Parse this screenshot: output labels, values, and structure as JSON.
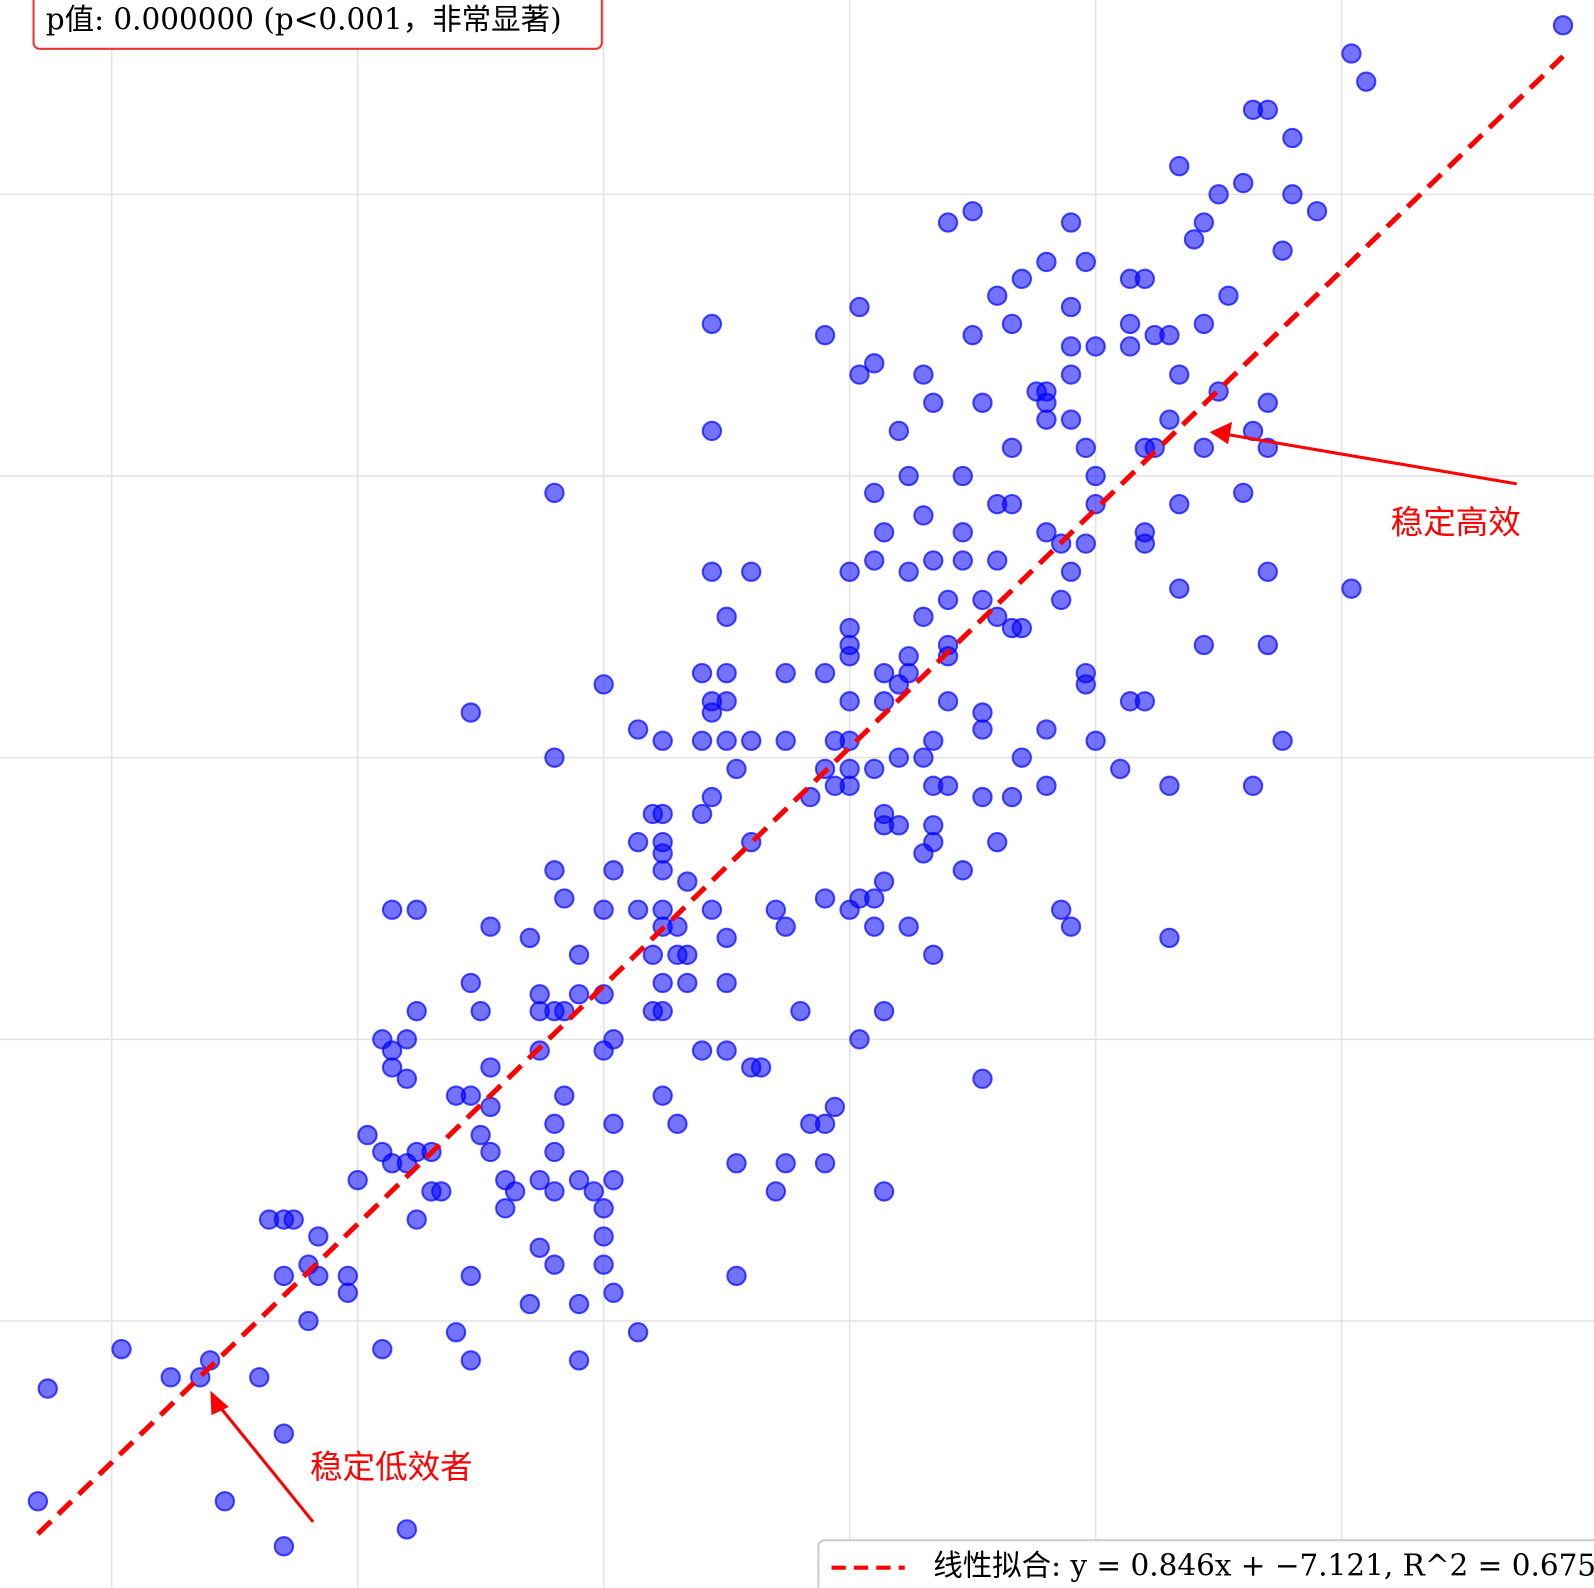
{
  "chart_data": {
    "type": "scatter",
    "annotation_box": "p值: 0.000000 (p<0.001，非常显著)",
    "annotations": [
      {
        "text": "稳定高效"
      },
      {
        "text": "稳定低效者"
      }
    ],
    "xlim": [
      32.73,
      65.13
    ],
    "ylim": [
      20.26,
      48.45
    ],
    "xticks": [
      35,
      40,
      45,
      50,
      55,
      60
    ],
    "yticks": [
      25,
      30,
      35,
      40,
      45
    ],
    "grid": true,
    "legend": "lower right",
    "fit": {
      "name": "线性拟合: y = 0.846x + −7.121, R^2 = 0.675",
      "color": "#ff0000",
      "x": [
        33.5,
        64.5
      ],
      "y": [
        21.22,
        47.45
      ]
    },
    "series": [
      {
        "color": "#0000ff",
        "x": [
          64.5,
          60.2,
          60.5,
          58.2,
          58.5,
          59.0,
          56.7,
          58.0,
          57.5,
          59.0,
          59.5,
          57.2,
          57.0,
          58.8,
          54.5,
          52.0,
          52.5,
          54.8,
          54.0,
          53.5,
          53.0,
          55.7,
          56.0,
          57.7,
          50.2,
          54.5,
          53.3,
          52.5,
          49.5,
          47.2,
          55.7,
          57.2,
          56.2,
          56.5,
          54.5,
          55.0,
          55.7,
          50.5,
          50.2,
          51.5,
          54.5,
          53.8,
          54.0,
          56.7,
          57.5,
          51.7,
          52.7,
          54.0,
          54.5,
          54.0,
          56.5,
          58.5,
          51.0,
          47.2,
          56.0,
          56.2,
          57.2,
          58.2,
          58.5,
          53.3,
          54.8,
          51.2,
          52.3,
          55.0,
          44.0,
          50.5,
          53.0,
          53.3,
          55.0,
          56.7,
          58.0,
          51.5,
          50.7,
          52.3,
          54.0,
          56.0,
          56.0,
          54.3,
          54.8,
          50.5,
          51.7,
          52.3,
          53.0,
          47.2,
          48.0,
          50.0,
          51.2,
          54.5,
          58.5,
          52.0,
          52.7,
          56.7,
          60.2,
          47.5,
          51.5,
          53.0,
          53.3,
          53.5,
          54.3,
          50.0,
          50.0,
          50.0,
          52.0,
          57.2,
          58.5,
          51.2,
          47.0,
          47.5,
          48.7,
          49.5,
          50.7,
          51.2,
          52.0,
          54.8,
          54.8,
          45.0,
          51.0,
          47.2,
          47.5,
          50.0,
          50.7,
          52.0,
          55.7,
          56.0,
          42.3,
          47.2,
          52.7,
          45.7,
          52.7,
          54.0,
          46.2,
          47.0,
          47.5,
          48.0,
          48.7,
          49.7,
          50.0,
          51.7,
          55.0,
          58.8,
          44.0,
          51.0,
          51.5,
          53.5,
          47.7,
          49.5,
          50.0,
          50.5,
          55.5,
          49.7,
          50.0,
          51.7,
          52.0,
          54.0,
          56.5,
          58.2,
          49.2,
          52.7,
          53.3,
          47.2,
          46.0,
          46.2,
          47.0,
          50.7,
          50.7,
          51.0,
          51.7,
          45.7,
          46.2,
          48.0,
          51.7,
          53.0,
          46.2,
          51.5,
          44.0,
          45.2,
          46.2,
          52.3,
          46.7,
          50.7,
          44.2,
          49.5,
          50.2,
          50.5,
          40.7,
          41.2,
          45.0,
          45.7,
          46.2,
          47.2,
          48.5,
          50.0,
          54.3,
          42.7,
          46.2,
          46.5,
          48.7,
          50.5,
          51.2,
          54.5,
          43.5,
          47.5,
          56.5,
          44.5,
          46.0,
          46.5,
          46.7,
          51.7,
          42.3,
          46.2,
          46.7,
          47.5,
          43.7,
          44.5,
          45.0,
          41.2,
          42.5,
          43.7,
          44.0,
          44.2,
          46.0,
          46.2,
          49.0,
          50.7,
          40.5,
          41.0,
          45.2,
          50.2,
          40.7,
          43.7,
          45.0,
          47.0,
          47.5,
          40.7,
          42.7,
          48.0,
          48.2,
          41.0,
          52.7,
          42.0,
          42.3,
          44.2,
          46.2,
          42.7,
          49.7,
          44.0,
          45.2,
          46.5,
          49.2,
          49.5,
          40.2,
          42.5,
          40.5,
          41.2,
          41.5,
          42.7,
          44.0,
          40.7,
          41.0,
          47.7,
          48.7,
          49.5,
          40.0,
          43.0,
          43.7,
          44.5,
          45.2,
          41.5,
          41.7,
          43.2,
          44.0,
          44.8,
          48.5,
          50.7,
          43.0,
          45.0,
          38.2,
          38.5,
          38.7,
          41.2,
          39.2,
          45.0,
          43.7,
          39.0,
          44.0,
          45.0,
          38.5,
          39.2,
          39.8,
          42.3,
          47.7,
          39.8,
          45.2,
          43.5,
          44.5,
          39.0,
          42.0,
          45.7,
          35.2,
          40.5,
          37.0,
          42.3,
          44.5,
          36.2,
          36.8,
          38.0,
          33.7,
          38.5,
          33.5,
          37.3,
          41.0,
          38.5
        ],
        "values": [
          48.0,
          47.5,
          47.0,
          46.5,
          46.5,
          46.0,
          45.5,
          45.2,
          45.0,
          45.0,
          44.7,
          44.5,
          44.2,
          44.0,
          44.5,
          44.5,
          44.7,
          43.8,
          43.8,
          43.5,
          43.2,
          43.5,
          43.5,
          43.2,
          43.0,
          43.0,
          42.7,
          42.5,
          42.5,
          42.7,
          42.7,
          42.7,
          42.5,
          42.5,
          42.3,
          42.3,
          42.3,
          42.0,
          41.8,
          41.8,
          41.8,
          41.5,
          41.5,
          41.8,
          41.5,
          41.3,
          41.3,
          41.3,
          41.0,
          41.0,
          41.0,
          41.3,
          40.8,
          40.8,
          40.5,
          40.5,
          40.5,
          40.8,
          40.5,
          40.5,
          40.5,
          40.0,
          40.0,
          40.0,
          39.7,
          39.7,
          39.5,
          39.5,
          39.5,
          39.5,
          39.7,
          39.3,
          39.0,
          39.0,
          39.0,
          39.0,
          38.8,
          38.8,
          38.8,
          38.5,
          38.5,
          38.5,
          38.5,
          38.3,
          38.3,
          38.3,
          38.3,
          38.3,
          38.3,
          37.8,
          37.8,
          38.0,
          38.0,
          37.5,
          37.5,
          37.5,
          37.3,
          37.3,
          37.8,
          37.3,
          37.0,
          36.8,
          37.0,
          37.0,
          37.0,
          36.8,
          36.5,
          36.5,
          36.5,
          36.5,
          36.5,
          36.5,
          36.8,
          36.5,
          36.3,
          36.3,
          36.3,
          36.0,
          36.0,
          36.0,
          36.0,
          36.0,
          36.0,
          36.0,
          35.8,
          35.8,
          35.8,
          35.5,
          35.5,
          35.5,
          35.3,
          35.3,
          35.3,
          35.3,
          35.3,
          35.3,
          35.3,
          35.3,
          35.3,
          35.3,
          35.0,
          35.0,
          35.0,
          35.0,
          34.8,
          34.8,
          34.8,
          34.8,
          34.8,
          34.5,
          34.5,
          34.5,
          34.5,
          34.5,
          34.5,
          34.5,
          34.3,
          34.3,
          34.3,
          34.3,
          34.0,
          34.0,
          34.0,
          34.0,
          33.8,
          33.8,
          33.8,
          33.5,
          33.5,
          33.5,
          33.5,
          33.5,
          33.3,
          33.3,
          33.0,
          33.0,
          33.0,
          33.0,
          32.8,
          32.8,
          32.5,
          32.5,
          32.5,
          32.5,
          32.3,
          32.3,
          32.3,
          32.3,
          32.3,
          32.3,
          32.3,
          32.3,
          32.3,
          32.0,
          32.0,
          32.0,
          32.0,
          32.0,
          32.0,
          32.0,
          31.8,
          31.8,
          31.8,
          31.5,
          31.5,
          31.5,
          31.5,
          31.5,
          31.0,
          31.0,
          31.0,
          31.0,
          30.8,
          30.8,
          30.8,
          30.5,
          30.5,
          30.5,
          30.5,
          30.5,
          30.5,
          30.5,
          30.5,
          30.5,
          30.0,
          30.0,
          30.0,
          30.0,
          29.8,
          29.8,
          29.8,
          29.8,
          29.8,
          29.5,
          29.5,
          29.5,
          29.5,
          29.3,
          29.3,
          29.0,
          29.0,
          29.0,
          29.0,
          28.8,
          28.8,
          28.5,
          28.5,
          28.5,
          28.5,
          28.5,
          28.3,
          28.3,
          28.0,
          28.0,
          28.0,
          28.0,
          28.0,
          27.8,
          27.8,
          27.8,
          27.8,
          27.8,
          27.5,
          27.5,
          27.5,
          27.5,
          27.5,
          27.3,
          27.3,
          27.3,
          27.3,
          27.3,
          27.3,
          27.3,
          27.0,
          27.0,
          26.8,
          26.8,
          26.8,
          26.8,
          26.5,
          26.5,
          26.3,
          26.0,
          26.0,
          26.0,
          25.8,
          25.8,
          25.8,
          25.8,
          25.8,
          25.5,
          25.5,
          25.3,
          25.3,
          25.0,
          24.8,
          24.8,
          24.5,
          24.5,
          24.3,
          24.3,
          24.3,
          24.0,
          24.0,
          24.0,
          23.8,
          23.0,
          21.8,
          21.8,
          21.3,
          21.0
        ]
      }
    ]
  }
}
